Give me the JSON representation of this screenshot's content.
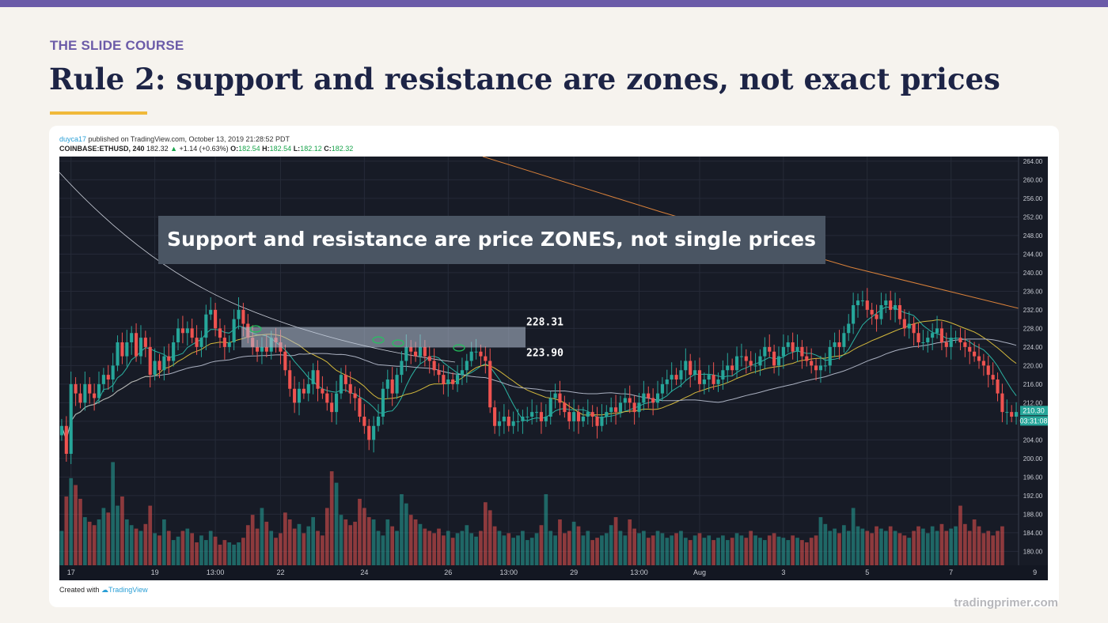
{
  "slide": {
    "kicker": "THE SLIDE COURSE",
    "title": "Rule 2: support and resistance are zones, not exact prices",
    "footer": "tradingprimer.com"
  },
  "tv": {
    "publisher": "duyca17",
    "published_text": " published on TradingView.com, October 13, 2019 21:28:52 PDT",
    "symbol": "COINBASE:ETHUSD, 240",
    "price": "182.32",
    "change": "+1.14 (+0.63%)",
    "o_label": "O:",
    "o": "182.54",
    "h_label": "H:",
    "h": "182.54",
    "l_label": "L:",
    "l": "182.12",
    "c_label": "C:",
    "c": "182.32",
    "created_prefix": "Created with",
    "created_brand": "TradingView",
    "last_price_tag": "210.30",
    "countdown_tag": "03:31:08"
  },
  "annotation": {
    "banner": "Support and resistance are price ZONES, not single prices",
    "zone_top_label": "228.31",
    "zone_bottom_label": "223.90"
  },
  "colors": {
    "up": "#26a69a",
    "down": "#ef5350",
    "zone": "#b7c2d6",
    "banner_bg": "#4a5563",
    "accent": "#6b5ba8"
  },
  "chart_data": {
    "type": "candlestick",
    "ylim": [
      177,
      265
    ],
    "zone": [
      223.9,
      228.31
    ],
    "y_ticks": [
      "264.00",
      "260.00",
      "256.00",
      "252.00",
      "248.00",
      "244.00",
      "240.00",
      "236.00",
      "232.00",
      "228.00",
      "224.00",
      "220.00",
      "216.00",
      "212.00",
      "208.00",
      "204.00",
      "200.00",
      "196.00",
      "192.00",
      "188.00",
      "184.00",
      "180.00"
    ],
    "x_ticks": [
      {
        "label": "17",
        "i": 2
      },
      {
        "label": "19",
        "i": 20
      },
      {
        "label": "13:00",
        "i": 33
      },
      {
        "label": "22",
        "i": 47
      },
      {
        "label": "24",
        "i": 65
      },
      {
        "label": "26",
        "i": 83
      },
      {
        "label": "13:00",
        "i": 96
      },
      {
        "label": "29",
        "i": 110
      },
      {
        "label": "13:00",
        "i": 124
      },
      {
        "label": "Aug",
        "i": 137
      },
      {
        "label": "3",
        "i": 155
      },
      {
        "label": "5",
        "i": 173
      },
      {
        "label": "7",
        "i": 191
      },
      {
        "label": "9",
        "i": 209
      }
    ],
    "closes": [
      207,
      201,
      216,
      214,
      212,
      216,
      214,
      213,
      216,
      218,
      217,
      220,
      225,
      222,
      225,
      227,
      222,
      226,
      224,
      218,
      221,
      219,
      222,
      221,
      225,
      228,
      227,
      228,
      226,
      224,
      226,
      231,
      232,
      228,
      226,
      224,
      225,
      230,
      232,
      229,
      226,
      224,
      223,
      224,
      223,
      226,
      225,
      223,
      219,
      215,
      212,
      215,
      214,
      216,
      219,
      215,
      214,
      212,
      210,
      214,
      218,
      216,
      214,
      213,
      209,
      207,
      204,
      207,
      209,
      215,
      217,
      214,
      218,
      221,
      224,
      223,
      222,
      224,
      222,
      221,
      219,
      218,
      216,
      217,
      216,
      218,
      219,
      221,
      223,
      223,
      222,
      221,
      211,
      207,
      208,
      209,
      207,
      208,
      208,
      209,
      209,
      210,
      210,
      208,
      209,
      213,
      214,
      212,
      210,
      208,
      210,
      208,
      209,
      210,
      209,
      207,
      209,
      210,
      211,
      210,
      212,
      213,
      212,
      210,
      212,
      214,
      213,
      212,
      214,
      216,
      217,
      218,
      217,
      219,
      221,
      218,
      219,
      216,
      217,
      218,
      216,
      217,
      219,
      220,
      219,
      222,
      222,
      221,
      220,
      220,
      222,
      224,
      223,
      220,
      222,
      224,
      225,
      223,
      224,
      222,
      221,
      220,
      219,
      220,
      220,
      224,
      225,
      224,
      227,
      229,
      233,
      234,
      234,
      232,
      231,
      230,
      233,
      234,
      232,
      233,
      230,
      228,
      229,
      227,
      225,
      225,
      226,
      227,
      228,
      225,
      224,
      226,
      226,
      225,
      224,
      223,
      222,
      221,
      220,
      218,
      217,
      214,
      210,
      210,
      209,
      210
    ],
    "volumes": [
      0.3,
      0.6,
      0.76,
      0.7,
      0.58,
      0.42,
      0.38,
      0.35,
      0.4,
      0.5,
      0.46,
      0.9,
      0.52,
      0.6,
      0.4,
      0.35,
      0.32,
      0.3,
      0.36,
      0.52,
      0.28,
      0.26,
      0.4,
      0.3,
      0.22,
      0.25,
      0.3,
      0.32,
      0.28,
      0.2,
      0.26,
      0.22,
      0.3,
      0.25,
      0.18,
      0.22,
      0.2,
      0.18,
      0.2,
      0.24,
      0.35,
      0.44,
      0.32,
      0.5,
      0.38,
      0.3,
      0.24,
      0.28,
      0.46,
      0.4,
      0.32,
      0.36,
      0.28,
      0.34,
      0.42,
      0.3,
      0.26,
      0.5,
      0.82,
      0.72,
      0.44,
      0.4,
      0.35,
      0.38,
      0.58,
      0.5,
      0.42,
      0.4,
      0.3,
      0.26,
      0.4,
      0.34,
      0.3,
      0.62,
      0.54,
      0.44,
      0.4,
      0.36,
      0.32,
      0.3,
      0.28,
      0.32,
      0.26,
      0.3,
      0.24,
      0.28,
      0.3,
      0.35,
      0.28,
      0.25,
      0.3,
      0.55,
      0.48,
      0.34,
      0.3,
      0.26,
      0.28,
      0.24,
      0.26,
      0.3,
      0.22,
      0.24,
      0.28,
      0.35,
      0.62,
      0.3,
      0.26,
      0.4,
      0.28,
      0.3,
      0.38,
      0.34,
      0.26,
      0.3,
      0.22,
      0.24,
      0.26,
      0.28,
      0.35,
      0.42,
      0.3,
      0.26,
      0.4,
      0.32,
      0.28,
      0.3,
      0.24,
      0.26,
      0.3,
      0.28,
      0.24,
      0.26,
      0.28,
      0.3,
      0.24,
      0.22,
      0.26,
      0.28,
      0.24,
      0.26,
      0.22,
      0.24,
      0.26,
      0.22,
      0.24,
      0.28,
      0.26,
      0.24,
      0.3,
      0.26,
      0.24,
      0.22,
      0.26,
      0.28,
      0.25,
      0.24,
      0.22,
      0.26,
      0.24,
      0.22,
      0.2,
      0.24,
      0.26,
      0.42,
      0.36,
      0.3,
      0.32,
      0.28,
      0.35,
      0.3,
      0.5,
      0.34,
      0.32,
      0.3,
      0.28,
      0.34,
      0.32,
      0.3,
      0.34,
      0.3,
      0.28,
      0.26,
      0.24,
      0.3,
      0.34,
      0.32,
      0.28,
      0.34,
      0.3,
      0.36,
      0.3,
      0.32,
      0.34,
      0.52,
      0.36,
      0.3,
      0.4,
      0.34,
      0.28,
      0.3,
      0.26,
      0.3,
      0.34
    ]
  }
}
